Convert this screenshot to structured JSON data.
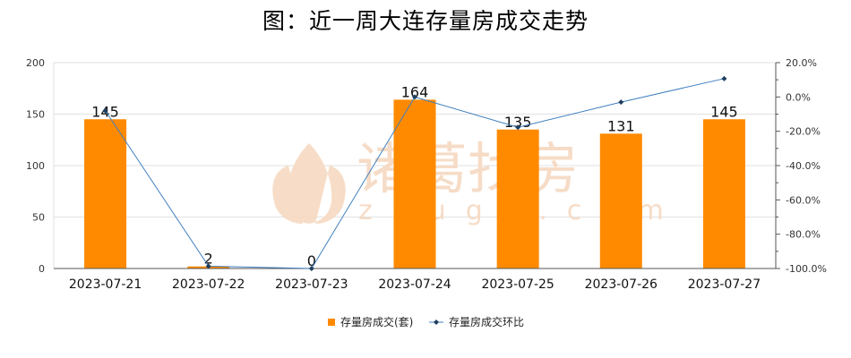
{
  "chart_data": {
    "type": "bar",
    "title": "图：近一周大连存量房成交走势",
    "categories": [
      "2023-07-21",
      "2023-07-22",
      "2023-07-23",
      "2023-07-24",
      "2023-07-25",
      "2023-07-26",
      "2023-07-27"
    ],
    "series": [
      {
        "name": "存量房成交(套)",
        "type": "bar",
        "axis": "left",
        "color": "#ff8a00",
        "values": [
          145,
          2,
          0,
          164,
          135,
          131,
          145
        ]
      },
      {
        "name": "存量房成交环比",
        "type": "line",
        "axis": "right",
        "color": "#3f7fbf",
        "values": [
          -8.0,
          -98.6,
          -100.0,
          0.0,
          -17.7,
          -3.0,
          10.7
        ]
      }
    ],
    "y_left": {
      "min": 0,
      "max": 200,
      "ticks": [
        0,
        50,
        100,
        150,
        200
      ]
    },
    "y_right": {
      "min": -100,
      "max": 20,
      "ticks": [
        20,
        0,
        -20,
        -40,
        -60,
        -80,
        -100
      ],
      "tick_labels": [
        "20.0%",
        "0.0%",
        "-20.0%",
        "-40.0%",
        "-60.0%",
        "-80.0%",
        "-100.0%"
      ]
    },
    "grid": true,
    "legend_position": "bottom",
    "watermark": {
      "cn": "诸葛找房",
      "en": "zhuge.com"
    }
  }
}
